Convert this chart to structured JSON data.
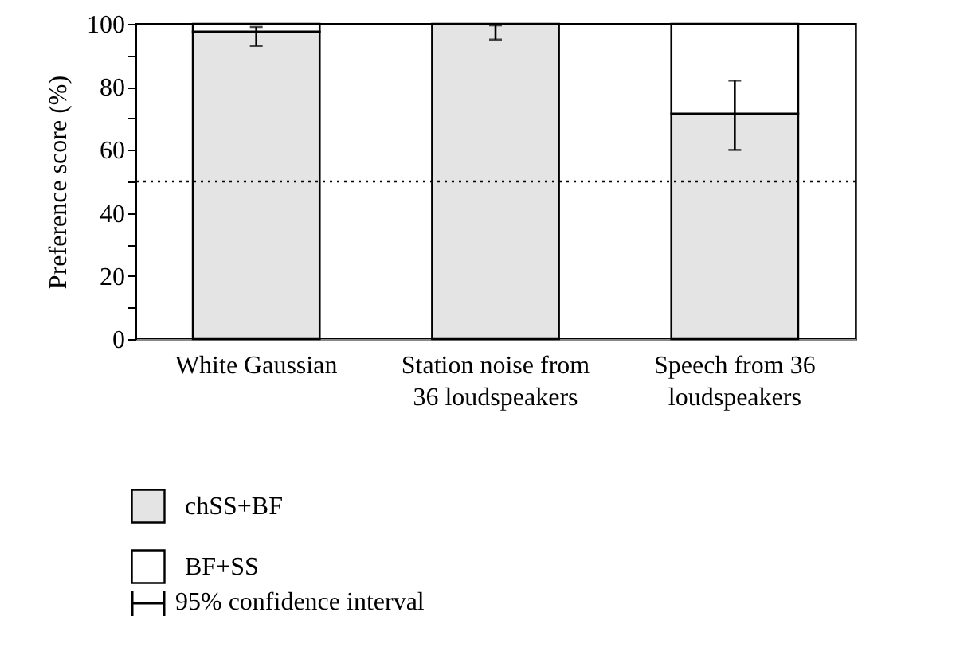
{
  "chart_data": {
    "type": "bar",
    "stacked": true,
    "ylabel": "Preference score (%)",
    "categories": [
      "White Gaussian",
      "Station noise from 36 loudspeakers",
      "Speech from 36 loudspeakers"
    ],
    "series": [
      {
        "name": "chSS+BF",
        "color": "#e4e4e4",
        "values": [
          97.5,
          100,
          71.5
        ],
        "errors": [
          [
            93,
            99
          ],
          [
            95,
            99.5
          ],
          [
            60,
            82
          ]
        ]
      },
      {
        "name": "BF+SS",
        "color": "#ffffff",
        "values": [
          2.5,
          null,
          28.5
        ]
      }
    ],
    "ylim": [
      0,
      100
    ],
    "yticks": [
      0,
      {
        "value": 10,
        "label": null
      },
      20,
      {
        "value": 30,
        "label": null
      },
      40,
      {
        "value": 50,
        "label": null
      },
      60,
      {
        "value": 70,
        "label": null
      },
      80,
      {
        "value": 90,
        "label": null
      },
      100
    ],
    "ref_lines": [
      {
        "axis": "y",
        "value": 50,
        "line_style": "dotted"
      }
    ],
    "legend": "bottom left",
    "grid": false,
    "annotations": [
      "95% confidence interval"
    ]
  }
}
